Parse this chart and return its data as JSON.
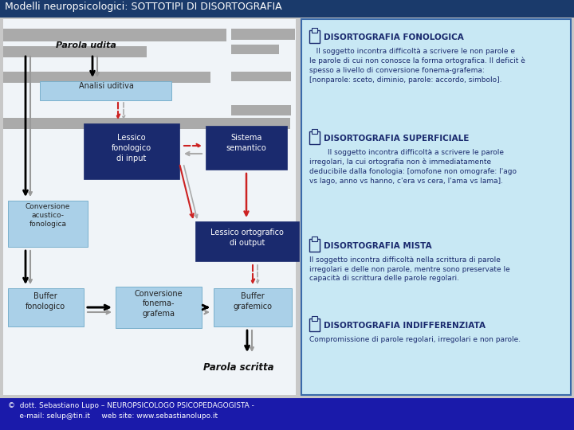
{
  "title": "Modelli neuropsicologici: SOTTOTIPI DI DISORTOGRAFIA",
  "title_bg": "#1a3a6b",
  "title_fg": "#ffffff",
  "bg_color": "#c8c8c8",
  "footer_bg": "#1a1aaa",
  "footer_line1": "©  dott. Sebastiano Lupo – NEUROPSICOLOGO PSICOPEDAGOGISTA -",
  "footer_line2": "     e-mail: selup@tin.it     web site: www.sebastianolupo.it",
  "left_panel_bg": "#f0f4f8",
  "right_panel_bg": "#c8e8f4",
  "right_panel_border": "#3a6aaa",
  "dark_blue": "#1a2a6e",
  "light_blue": "#aad0e8",
  "gray_stripe": "#aaaaaa",
  "section_title_color": "#1a2a6e",
  "section_body_color": "#1a2a6e",
  "s1_title": "DISORTOGRAFIA FONOLOGICA",
  "s1_body": "   Il soggetto incontra difficoltà a scrivere le non parole e\nle parole di cui non conosce la forma ortografica. Il deficit è\nspesso a livello di conversione fonema-grafema:\n[nonparole: sceto, diminio, parole: accordo, simbolo].",
  "s2_title": "DISORTOGRAFIA SUPERFICIALE",
  "s2_body": "        Il soggetto incontra difficoltà a scrivere le parole\nirregolari, la cui ortografia non è immediatamente\ndeducibile dalla fonologia: [omofone non omografe: l'ago\nvs lago, anno vs hanno, c'era vs cera, l'ama vs lama].",
  "s3_title": "DISORTOGRAFIA MISTA",
  "s3_body": "Il soggetto incontra difficoltà nella scrittura di parole\nirregolari e delle non parole, mentre sono preservate le\ncapacità di scrittura delle parole regolari.",
  "s4_title": "DISORTOGRAFIA INDIFFERENZIATA",
  "s4_body": "Compromissione di parole regolari, irregolari e non parole."
}
